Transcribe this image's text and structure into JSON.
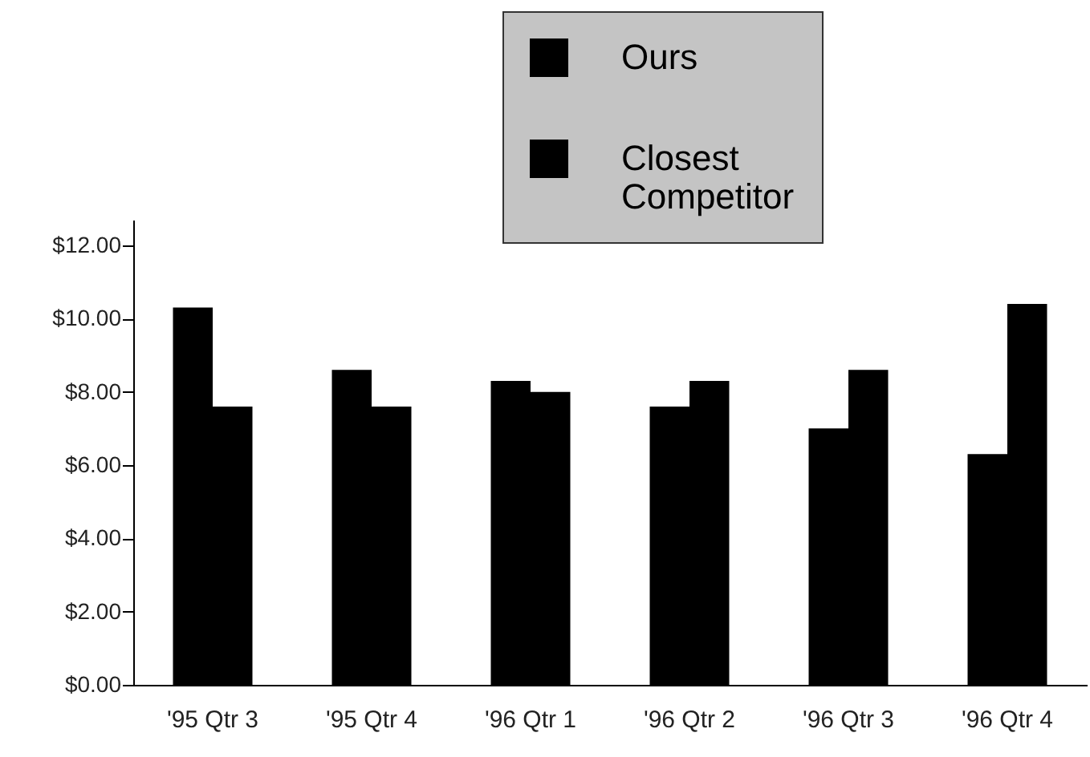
{
  "chart_data": {
    "type": "bar",
    "categories": [
      "'95 Qtr 3",
      "'95 Qtr 4",
      "'96 Qtr 1",
      "'96 Qtr 2",
      "'96 Qtr 3",
      "'96 Qtr 4"
    ],
    "series": [
      {
        "name": "Ours",
        "color": "#000000",
        "values": [
          10.3,
          8.6,
          8.3,
          7.6,
          7.0,
          6.3
        ]
      },
      {
        "name": "Closest Competitor",
        "color": "#000000",
        "values": [
          7.6,
          7.6,
          8.0,
          8.3,
          8.6,
          10.4
        ]
      }
    ],
    "ylim": [
      0,
      12.7
    ],
    "yticks": [
      {
        "value": 0,
        "label": "$0.00"
      },
      {
        "value": 2,
        "label": "$2.00"
      },
      {
        "value": 4,
        "label": "$4.00"
      },
      {
        "value": 6,
        "label": "$6.00"
      },
      {
        "value": 8,
        "label": "$8.00"
      },
      {
        "value": 10,
        "label": "$10.00"
      },
      {
        "value": 12,
        "label": "$12.00"
      }
    ],
    "legend": "top"
  }
}
